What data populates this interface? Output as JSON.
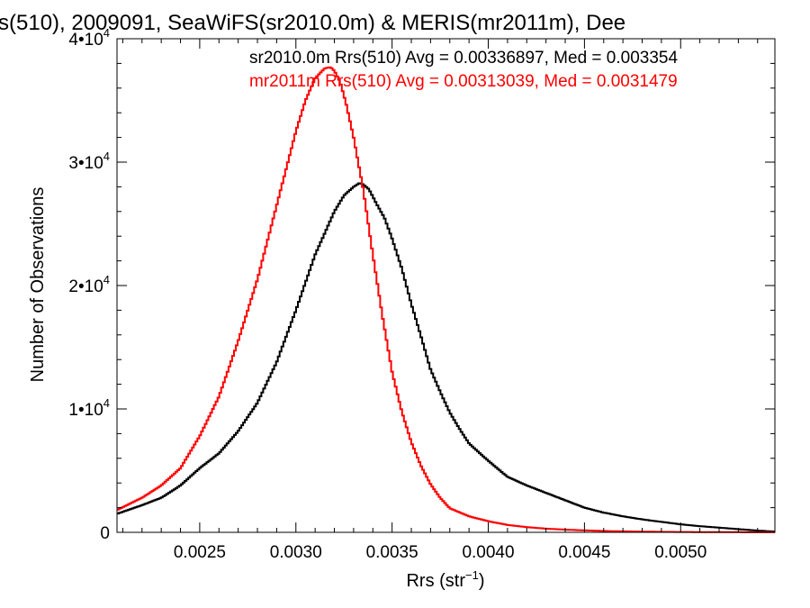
{
  "chart_data": {
    "type": "line",
    "title": "s(510), 2009091, SeaWiFS(sr2010.0m) & MERIS(mr2011m), Dee",
    "xlabel": "Rrs (str",
    "xlabel_sup": "−1",
    "xlabel_close": ")",
    "ylabel": "Number of Observations",
    "xlim": [
      0.00207,
      0.00549
    ],
    "ylim": [
      0,
      40000
    ],
    "xticks": [
      {
        "value": 0.0025,
        "label": "0.0025"
      },
      {
        "value": 0.003,
        "label": "0.0030"
      },
      {
        "value": 0.0035,
        "label": "0.0035"
      },
      {
        "value": 0.004,
        "label": "0.0040"
      },
      {
        "value": 0.0045,
        "label": "0.0045"
      },
      {
        "value": 0.005,
        "label": "0.0050"
      }
    ],
    "yticks": [
      {
        "value": 0,
        "label": "0",
        "sup": ""
      },
      {
        "value": 10000,
        "label": "1•10",
        "sup": "4"
      },
      {
        "value": 20000,
        "label": "2•10",
        "sup": "4"
      },
      {
        "value": 30000,
        "label": "3•10",
        "sup": "4"
      },
      {
        "value": 40000,
        "label": "4•10",
        "sup": "4"
      }
    ],
    "annotations": [
      {
        "text": "sr2010.0m Rrs(510) Avg = 0.00336897, Med = 0.003354",
        "color": "#000000"
      },
      {
        "text": "mr2011m Rrs(510) Avg = 0.00313039, Med = 0.0031479",
        "color": "#ff0000"
      }
    ],
    "series": [
      {
        "color": "#000000",
        "x": [
          0.00207,
          0.0022,
          0.0023,
          0.0024,
          0.0025,
          0.0026,
          0.0027,
          0.0028,
          0.0029,
          0.003,
          0.0031,
          0.0032,
          0.00325,
          0.0033,
          0.00333,
          0.00335,
          0.00338,
          0.00342,
          0.00346,
          0.0035,
          0.00355,
          0.0036,
          0.00365,
          0.0037,
          0.00375,
          0.0038,
          0.00385,
          0.0039,
          0.004,
          0.0041,
          0.0042,
          0.0043,
          0.0044,
          0.0045,
          0.0046,
          0.0047,
          0.0048,
          0.0049,
          0.005,
          0.0051,
          0.0052,
          0.0053,
          0.0054,
          0.00549
        ],
        "y": [
          1500,
          2200,
          2800,
          3800,
          5200,
          6400,
          8200,
          10500,
          13800,
          18000,
          22500,
          26000,
          27300,
          28000,
          28300,
          28200,
          27800,
          26600,
          25500,
          23800,
          21400,
          18500,
          15900,
          13200,
          11400,
          9700,
          8400,
          7200,
          5800,
          4500,
          3800,
          3200,
          2600,
          2000,
          1600,
          1300,
          1050,
          850,
          650,
          500,
          380,
          260,
          140,
          60
        ]
      },
      {
        "color": "#ff0000",
        "x": [
          0.00207,
          0.0022,
          0.0023,
          0.0024,
          0.0025,
          0.0026,
          0.0027,
          0.0028,
          0.0029,
          0.00295,
          0.003,
          0.00305,
          0.0031,
          0.00315,
          0.00318,
          0.0032,
          0.00323,
          0.00326,
          0.0033,
          0.00335,
          0.0034,
          0.00345,
          0.0035,
          0.00355,
          0.0036,
          0.00365,
          0.0037,
          0.00375,
          0.0038,
          0.0039,
          0.004,
          0.0041,
          0.0042,
          0.0043,
          0.0044,
          0.0045,
          0.0046,
          0.0047,
          0.0048,
          0.0049,
          0.005,
          0.0052,
          0.00549
        ],
        "y": [
          1800,
          2800,
          3800,
          5200,
          7800,
          11000,
          15500,
          20500,
          26500,
          29500,
          32500,
          35000,
          36800,
          37600,
          37700,
          37400,
          36500,
          34800,
          32000,
          27800,
          22500,
          17500,
          13000,
          9800,
          7300,
          5400,
          3900,
          2800,
          1950,
          1300,
          900,
          600,
          420,
          300,
          220,
          160,
          110,
          80,
          60,
          40,
          30,
          15,
          5
        ]
      }
    ]
  }
}
